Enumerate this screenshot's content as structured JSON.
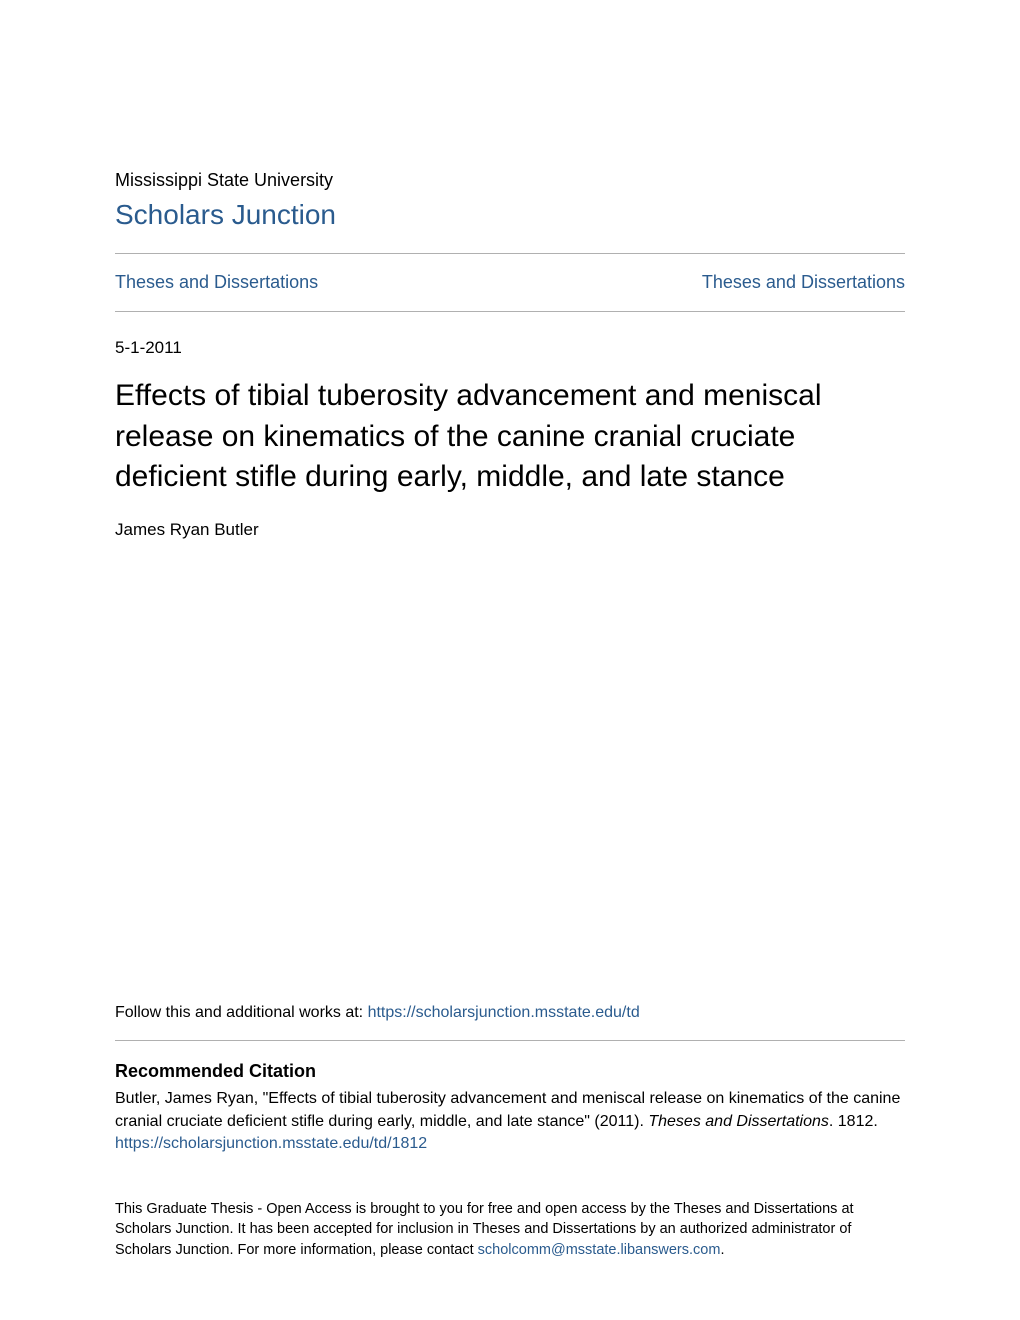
{
  "header": {
    "institution": "Mississippi State University",
    "repository": "Scholars Junction"
  },
  "nav": {
    "left": "Theses and Dissertations",
    "right": "Theses and Dissertations"
  },
  "meta": {
    "date": "5-1-2011",
    "title": "Effects of tibial tuberosity advancement and meniscal release on kinematics of the canine cranial cruciate deficient stifle during early, middle, and late stance",
    "author": "James Ryan Butler"
  },
  "follow": {
    "prefix": "Follow this and additional works at: ",
    "url": "https://scholarsjunction.msstate.edu/td"
  },
  "citation": {
    "heading": "Recommended Citation",
    "text_part1": "Butler, James Ryan, \"Effects of tibial tuberosity advancement and meniscal release on kinematics of the canine cranial cruciate deficient stifle during early, middle, and late stance\" (2011). ",
    "text_italic": "Theses and Dissertations",
    "text_part2": ". 1812.",
    "url": "https://scholarsjunction.msstate.edu/td/1812"
  },
  "footer": {
    "text_part1": "This Graduate Thesis - Open Access is brought to you for free and open access by the Theses and Dissertations at Scholars Junction. It has been accepted for inclusion in Theses and Dissertations by an authorized administrator of Scholars Junction. For more information, please contact ",
    "contact": "scholcomm@msstate.libanswers.com",
    "text_part2": "."
  },
  "colors": {
    "link": "#2a5b8e",
    "text": "#000000",
    "rule": "#b0b0b0",
    "background": "#ffffff"
  },
  "typography": {
    "institution_fontsize": 18,
    "repo_fontsize": 28,
    "nav_fontsize": 18,
    "date_fontsize": 17,
    "title_fontsize": 30,
    "author_fontsize": 17,
    "follow_fontsize": 16,
    "citation_heading_fontsize": 18,
    "citation_text_fontsize": 16,
    "footer_fontsize": 14.5
  }
}
